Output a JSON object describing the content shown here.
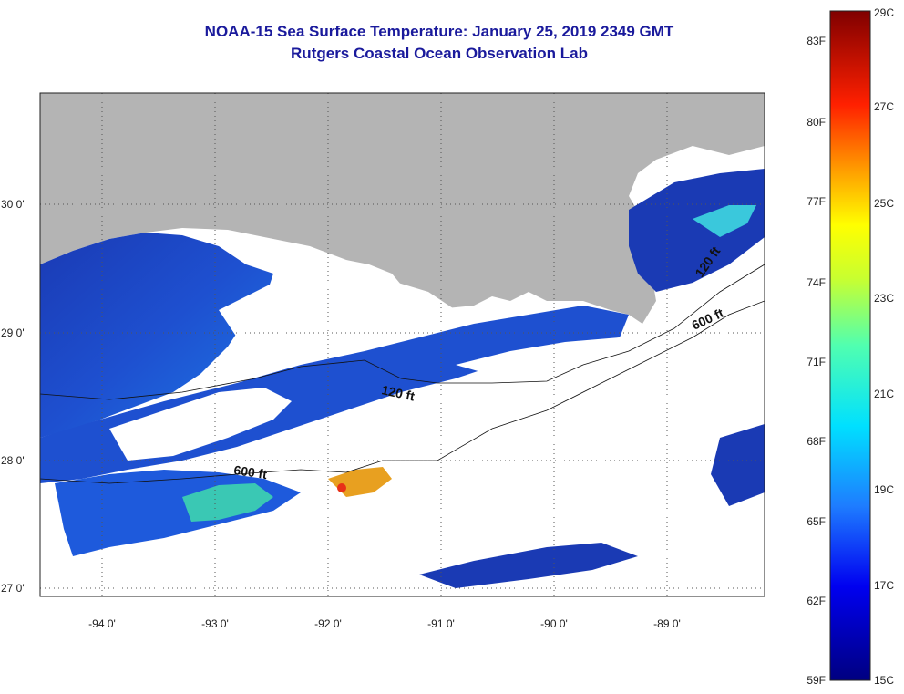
{
  "title_line1": "NOAA-15 Sea Surface Temperature:  January 25, 2019 2349 GMT",
  "title_line2": "Rutgers Coastal Ocean Observation Lab",
  "lat_labels": [
    "30 0'",
    "29 0'",
    "28 0'",
    "27 0'"
  ],
  "lon_labels": [
    "-94 0'",
    "-93 0'",
    "-92 0'",
    "-91 0'",
    "-90 0'",
    "-89 0'"
  ],
  "contour_labels": [
    "120 ft",
    "600 ft",
    "120 ft",
    "600 ft"
  ],
  "colorbar": {
    "fahrenheit": [
      "83F",
      "80F",
      "77F",
      "74F",
      "71F",
      "68F",
      "65F",
      "62F",
      "59F"
    ],
    "celsius": [
      "29C",
      "27C",
      "25C",
      "23C",
      "21C",
      "19C",
      "17C",
      "15C"
    ],
    "colors": {
      "land": "#b4b4b4",
      "water_cold": "#1a3ab4",
      "water_mid": "#1e64dc",
      "water_warm": "#28d2c8",
      "hot": "#e83018"
    }
  }
}
